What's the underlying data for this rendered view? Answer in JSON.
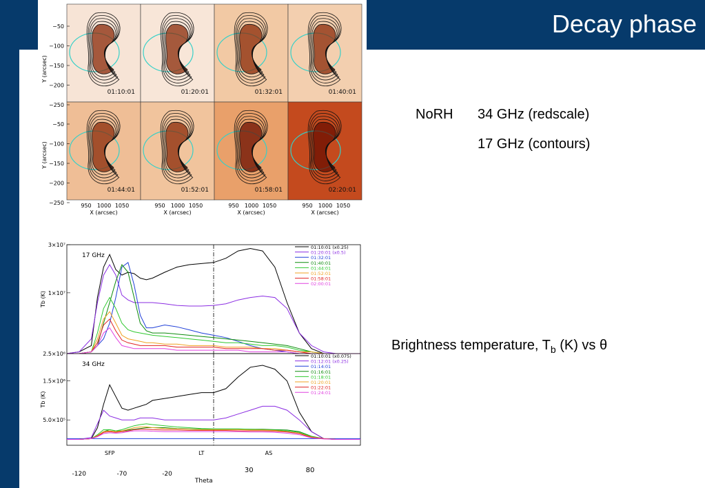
{
  "slide": {
    "title": "Decay phase",
    "norh_label": "NoRH",
    "line1": "34 GHz (redscale)",
    "line2": "17 GHz (contours)",
    "caption_main": "Brightness temperature, T",
    "caption_sub": "b",
    "caption_tail": " (K) vs θ"
  },
  "images": {
    "panels": [
      {
        "time": "01:10:01",
        "bg": "#f7e4d6"
      },
      {
        "time": "01:20:01",
        "bg": "#f8e6d8"
      },
      {
        "time": "01:32:01",
        "bg": "#f2c9a4"
      },
      {
        "time": "01:40:01",
        "bg": "#f3cfaf"
      },
      {
        "time": "01:44:01",
        "bg": "#efbe96"
      },
      {
        "time": "01:52:01",
        "bg": "#f1c49d"
      },
      {
        "time": "01:58:01",
        "bg": "#e9a06a"
      },
      {
        "time": "02:20:01",
        "bg": "#c44a1e"
      }
    ],
    "yticks": [
      "−50",
      "−100",
      "−150",
      "−200",
      "−250"
    ],
    "xticks": [
      "950",
      "1000",
      "1050"
    ],
    "xlabel": "X (arcsec)",
    "ylabel": "Y (arcsec)"
  },
  "chart_data": [
    {
      "type": "line",
      "label": "17 GHz",
      "ylabel": "Tb (K)",
      "yticks": [
        "3×10⁷",
        "1×10⁷",
        "2.5×10⁶"
      ],
      "x": [
        -120,
        -110,
        -100,
        -95,
        -90,
        -85,
        -80,
        -75,
        -70,
        -65,
        -60,
        -55,
        -50,
        -40,
        -30,
        -20,
        -10,
        0,
        10,
        20,
        30,
        40,
        50,
        60,
        70,
        80,
        90,
        100,
        110,
        120
      ],
      "series": [
        {
          "name": "01:10:01 (x0.25)",
          "color": "#000000",
          "values": [
            2500000.0,
            2600000.0,
            3000000.0,
            9000000.0,
            18000000.0,
            24000000.0,
            17000000.0,
            15000000.0,
            16000000.0,
            15500000.0,
            14000000.0,
            13500000.0,
            14000000.0,
            16000000.0,
            18000000.0,
            19000000.0,
            19500000.0,
            20000000.0,
            22000000.0,
            26000000.0,
            27500000.0,
            26000000.0,
            18000000.0,
            8000000.0,
            4000000.0,
            2800000.0,
            2500000.0,
            2500000.0,
            2500000.0,
            2500000.0
          ]
        },
        {
          "name": "01:20:01 (x0.5)",
          "color": "#8a2be2",
          "values": [
            2500000.0,
            2600000.0,
            3500000.0,
            8000000.0,
            15000000.0,
            19000000.0,
            15000000.0,
            9500000.0,
            8500000.0,
            8000000.0,
            8000000.0,
            8000000.0,
            8000000.0,
            7800000.0,
            7500000.0,
            7400000.0,
            7400000.0,
            7500000.0,
            7800000.0,
            8500000.0,
            9000000.0,
            9300000.0,
            9000000.0,
            7000000.0,
            4000000.0,
            3000000.0,
            2600000.0,
            2500000.0,
            2500000.0,
            2500000.0
          ]
        },
        {
          "name": "01:32:01",
          "color": "#1f3fd8",
          "values": [
            2500000.0,
            2500000.0,
            2600000.0,
            3000000.0,
            3500000.0,
            5000000.0,
            9000000.0,
            18000000.0,
            20000000.0,
            12000000.0,
            6000000.0,
            4500000.0,
            4500000.0,
            4800000.0,
            4600000.0,
            4300000.0,
            4000000.0,
            3800000.0,
            3600000.0,
            3300000.0,
            3000000.0,
            2800000.0,
            2700000.0,
            2600000.0,
            2500000.0,
            2500000.0,
            2500000.0,
            2500000.0,
            2500000.0,
            2500000.0
          ]
        },
        {
          "name": "01:40:01",
          "color": "#0a8a0a",
          "values": [
            2500000.0,
            2500000.0,
            2600000.0,
            3000000.0,
            5000000.0,
            8000000.0,
            13000000.0,
            19000000.0,
            16000000.0,
            9000000.0,
            5000000.0,
            4200000.0,
            4000000.0,
            4000000.0,
            3900000.0,
            3800000.0,
            3700000.0,
            3600000.0,
            3500000.0,
            3400000.0,
            3300000.0,
            3200000.0,
            3100000.0,
            3000000.0,
            2800000.0,
            2600000.0,
            2500000.0,
            2500000.0,
            2500000.0,
            2500000.0
          ]
        },
        {
          "name": "01:44:01",
          "color": "#2ec82e",
          "values": [
            2500000.0,
            2500000.0,
            2600000.0,
            4000000.0,
            7000000.0,
            9000000.0,
            7000000.0,
            5000000.0,
            4300000.0,
            4100000.0,
            4000000.0,
            3900000.0,
            3800000.0,
            3700000.0,
            3600000.0,
            3500000.0,
            3400000.0,
            3300000.0,
            3200000.0,
            3200000.0,
            3100000.0,
            3000000.0,
            3000000.0,
            2900000.0,
            2700000.0,
            2600000.0,
            2500000.0,
            2500000.0,
            2500000.0,
            2500000.0
          ]
        },
        {
          "name": "01:52:01",
          "color": "#f0a020",
          "values": [
            2500000.0,
            2500000.0,
            2600000.0,
            3500000.0,
            5500000.0,
            6500000.0,
            5000000.0,
            3800000.0,
            3500000.0,
            3400000.0,
            3300000.0,
            3200000.0,
            3200000.0,
            3100000.0,
            3100000.0,
            3000000.0,
            3000000.0,
            3000000.0,
            2900000.0,
            2900000.0,
            2900000.0,
            2800000.0,
            2800000.0,
            2700000.0,
            2600000.0,
            2600000.0,
            2500000.0,
            2500000.0,
            2500000.0,
            2500000.0
          ]
        },
        {
          "name": "01:58:01",
          "color": "#e02020",
          "values": [
            2500000.0,
            2500000.0,
            2600000.0,
            3200000.0,
            4800000.0,
            5500000.0,
            4200000.0,
            3400000.0,
            3200000.0,
            3100000.0,
            3000000.0,
            3000000.0,
            3000000.0,
            3000000.0,
            2900000.0,
            2900000.0,
            2900000.0,
            2900000.0,
            2800000.0,
            2800000.0,
            2800000.0,
            2800000.0,
            2700000.0,
            2700000.0,
            2600000.0,
            2500000.0,
            2500000.0,
            2500000.0,
            2500000.0,
            2500000.0
          ]
        },
        {
          "name": "02:00:01",
          "color": "#e040e0",
          "values": [
            2500000.0,
            2500000.0,
            2600000.0,
            3000000.0,
            4000000.0,
            4500000.0,
            3600000.0,
            3000000.0,
            2900000.0,
            2800000.0,
            2800000.0,
            2800000.0,
            2800000.0,
            2800000.0,
            2700000.0,
            2700000.0,
            2700000.0,
            2700000.0,
            2700000.0,
            2700000.0,
            2600000.0,
            2600000.0,
            2600000.0,
            2600000.0,
            2500000.0,
            2500000.0,
            2500000.0,
            2500000.0,
            2500000.0,
            2500000.0
          ]
        }
      ]
    },
    {
      "type": "line",
      "label": "34 GHz",
      "ylabel": "Tb (K)",
      "yticks": [
        "1.5×10⁶",
        "5.0×10⁵"
      ],
      "x": [
        -120,
        -110,
        -100,
        -95,
        -90,
        -85,
        -80,
        -75,
        -70,
        -65,
        -60,
        -55,
        -50,
        -40,
        -30,
        -20,
        -10,
        0,
        10,
        20,
        30,
        40,
        50,
        60,
        70,
        80,
        90,
        100,
        110,
        120
      ],
      "series": [
        {
          "name": "01:10:01 (x0.075)",
          "color": "#000000",
          "values": [
            0,
            0,
            20000.0,
            300000.0,
            900000.0,
            1400000.0,
            1100000.0,
            800000.0,
            750000.0,
            800000.0,
            850000.0,
            900000.0,
            1000000.0,
            1050000.0,
            1100000.0,
            1150000.0,
            1200000.0,
            1200000.0,
            1300000.0,
            1600000.0,
            1850000.0,
            1900000.0,
            1800000.0,
            1500000.0,
            700000.0,
            200000.0,
            20000.0,
            0,
            0,
            0
          ]
        },
        {
          "name": "01:12:01 (x0.25)",
          "color": "#8a2be2",
          "values": [
            0,
            0,
            50000.0,
            400000.0,
            750000.0,
            600000.0,
            550000.0,
            500000.0,
            500000.0,
            500000.0,
            550000.0,
            550000.0,
            550000.0,
            500000.0,
            500000.0,
            500000.0,
            500000.0,
            500000.0,
            550000.0,
            650000.0,
            750000.0,
            850000.0,
            850000.0,
            750000.0,
            500000.0,
            200000.0,
            20000.0,
            0,
            0,
            0
          ]
        },
        {
          "name": "01:14:01",
          "color": "#1f3fd8",
          "values": [
            20000.0,
            20000.0,
            20000.0,
            20000.0,
            20000.0,
            20000.0,
            20000.0,
            20000.0,
            20000.0,
            20000.0,
            20000.0,
            20000.0,
            20000.0,
            20000.0,
            20000.0,
            20000.0,
            20000.0,
            20000.0,
            20000.0,
            20000.0,
            20000.0,
            20000.0,
            20000.0,
            20000.0,
            20000.0,
            20000.0,
            20000.0,
            20000.0,
            20000.0,
            20000.0
          ]
        },
        {
          "name": "01:16:01",
          "color": "#0a8a0a",
          "values": [
            0,
            0,
            20000.0,
            100000.0,
            200000.0,
            250000.0,
            220000.0,
            220000.0,
            240000.0,
            260000.0,
            280000.0,
            300000.0,
            300000.0,
            300000.0,
            280000.0,
            270000.0,
            260000.0,
            260000.0,
            260000.0,
            260000.0,
            260000.0,
            260000.0,
            250000.0,
            240000.0,
            200000.0,
            80000.0,
            20000.0,
            0,
            0,
            0
          ]
        },
        {
          "name": "01:18:01",
          "color": "#2ec82e",
          "values": [
            0,
            0,
            20000.0,
            120000.0,
            250000.0,
            250000.0,
            220000.0,
            250000.0,
            300000.0,
            350000.0,
            380000.0,
            400000.0,
            380000.0,
            350000.0,
            320000.0,
            300000.0,
            280000.0,
            270000.0,
            270000.0,
            270000.0,
            260000.0,
            250000.0,
            240000.0,
            220000.0,
            180000.0,
            70000.0,
            20000.0,
            0,
            0,
            0
          ]
        },
        {
          "name": "01:20:01",
          "color": "#f0a020",
          "values": [
            0,
            0,
            20000.0,
            100000.0,
            200000.0,
            220000.0,
            200000.0,
            220000.0,
            260000.0,
            300000.0,
            320000.0,
            320000.0,
            300000.0,
            280000.0,
            270000.0,
            260000.0,
            250000.0,
            250000.0,
            250000.0,
            250000.0,
            240000.0,
            240000.0,
            230000.0,
            200000.0,
            160000.0,
            60000.0,
            20000.0,
            0,
            0,
            0
          ]
        },
        {
          "name": "01:22:01",
          "color": "#e02020",
          "values": [
            0,
            0,
            20000.0,
            80000.0,
            180000.0,
            200000.0,
            180000.0,
            200000.0,
            220000.0,
            250000.0,
            260000.0,
            260000.0,
            250000.0,
            240000.0,
            240000.0,
            230000.0,
            230000.0,
            230000.0,
            230000.0,
            220000.0,
            220000.0,
            220000.0,
            210000.0,
            190000.0,
            150000.0,
            50000.0,
            20000.0,
            0,
            0,
            0
          ]
        },
        {
          "name": "01:24:01",
          "color": "#e040e0",
          "values": [
            0,
            0,
            20000.0,
            70000.0,
            150000.0,
            170000.0,
            160000.0,
            170000.0,
            200000.0,
            220000.0,
            220000.0,
            220000.0,
            210000.0,
            200000.0,
            200000.0,
            200000.0,
            200000.0,
            200000.0,
            200000.0,
            200000.0,
            190000.0,
            190000.0,
            180000.0,
            160000.0,
            120000.0,
            40000.0,
            10000.0,
            0,
            0,
            0
          ]
        }
      ]
    }
  ],
  "axis": {
    "xlabel": "Theta",
    "upper_xticks": [
      "30",
      "80"
    ],
    "lower_xticks": [
      "-120",
      "-70",
      "-20"
    ],
    "region_labels": [
      "SFP",
      "LT",
      "AS"
    ]
  }
}
